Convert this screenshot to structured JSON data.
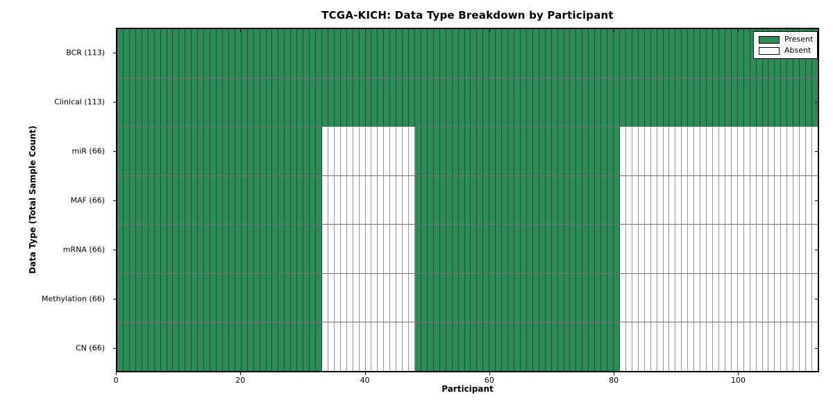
{
  "chart_data": {
    "type": "heatmap",
    "title": "TCGA-KICH: Data Type Breakdown by Participant",
    "xlabel": "Participant",
    "ylabel": "Data Type (Total Sample Count)",
    "n_participants": 113,
    "xlim": [
      0,
      113
    ],
    "x_ticks": [
      0,
      20,
      40,
      60,
      80,
      100
    ],
    "grid": "cell-borders",
    "legend": {
      "position": "upper right",
      "entries": [
        {
          "label": "Present",
          "color_key": "present"
        },
        {
          "label": "Absent",
          "color_key": "absent"
        }
      ]
    },
    "colors": {
      "present": "#2e8b57",
      "absent": "#ffffff",
      "spine": "#000000",
      "background": "#ffffff"
    },
    "rows": [
      {
        "label": "BCR (113)",
        "data_type": "BCR",
        "total_samples": 113,
        "present_ranges": [
          [
            0,
            112
          ]
        ]
      },
      {
        "label": "Clinical (113)",
        "data_type": "Clinical",
        "total_samples": 113,
        "present_ranges": [
          [
            0,
            112
          ]
        ]
      },
      {
        "label": "miR (66)",
        "data_type": "miR",
        "total_samples": 66,
        "present_ranges": [
          [
            0,
            32
          ],
          [
            48,
            80
          ]
        ]
      },
      {
        "label": "MAF (66)",
        "data_type": "MAF",
        "total_samples": 66,
        "present_ranges": [
          [
            0,
            32
          ],
          [
            48,
            80
          ]
        ]
      },
      {
        "label": "mRNA (66)",
        "data_type": "mRNA",
        "total_samples": 66,
        "present_ranges": [
          [
            0,
            32
          ],
          [
            48,
            80
          ]
        ]
      },
      {
        "label": "Methylation (66)",
        "data_type": "Methylation",
        "total_samples": 66,
        "present_ranges": [
          [
            0,
            32
          ],
          [
            48,
            80
          ]
        ]
      },
      {
        "label": "CN (66)",
        "data_type": "CN",
        "total_samples": 66,
        "present_ranges": [
          [
            0,
            32
          ],
          [
            48,
            80
          ]
        ]
      }
    ]
  }
}
